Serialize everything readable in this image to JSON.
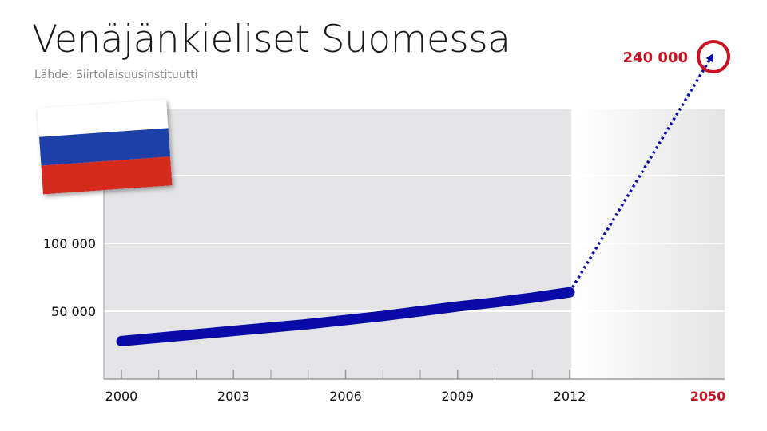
{
  "title": "Venäjänkieliset Suomessa",
  "source": "Lähde: Siirtolaisuusinstituutti",
  "flag": {
    "stripes": [
      "#ffffff",
      "#1c3fa8",
      "#d52b1e"
    ]
  },
  "colors": {
    "line": "#0a0aa8",
    "highlight": "#cc1122",
    "plot_bg": "#e4e4e6",
    "grid": "#ffffff"
  },
  "chart_data": {
    "type": "line",
    "title": "Venäjänkieliset Suomessa",
    "xlabel": "",
    "ylabel": "",
    "xlim": [
      1999,
      2050
    ],
    "ylim": [
      0,
      200000
    ],
    "x_ticks": [
      2000,
      2003,
      2006,
      2009,
      2012,
      2050
    ],
    "x_tick_labels": [
      "2000",
      "2003",
      "2006",
      "2009",
      "2012",
      "2050"
    ],
    "y_ticks": [
      50000,
      100000
    ],
    "y_tick_labels": [
      "50 000",
      "100 000"
    ],
    "series": [
      {
        "style": "solid",
        "x": [
          2000,
          2001,
          2002,
          2003,
          2004,
          2005,
          2006,
          2007,
          2008,
          2009,
          2010,
          2011,
          2012
        ],
        "y": [
          28000,
          30500,
          33000,
          35500,
          38000,
          40500,
          43500,
          46500,
          50000,
          53500,
          56500,
          60000,
          64000
        ]
      },
      {
        "style": "dotted",
        "x": [
          2012,
          2050
        ],
        "y": [
          64000,
          240000
        ]
      }
    ],
    "annotations": [
      {
        "x": 2050,
        "y": 240000,
        "text": "240 000"
      }
    ],
    "grid": true
  }
}
